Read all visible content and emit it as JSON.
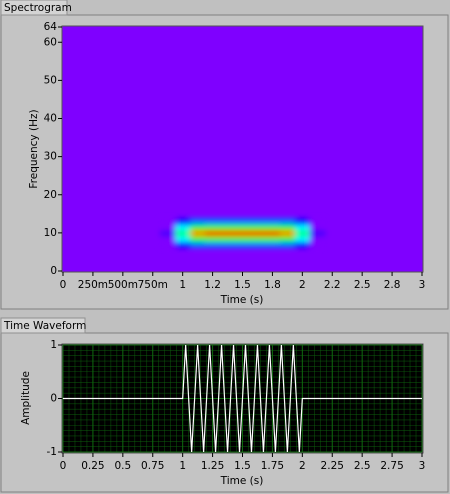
{
  "chart_data": [
    {
      "type": "heatmap",
      "title": "Spectrogram",
      "x_label": "Time (s)",
      "y_label": "Frequency (Hz)",
      "x": [
        0.875,
        1.0,
        1.125,
        1.25,
        1.375,
        1.5,
        1.625,
        1.75,
        1.875,
        2.0,
        2.125
      ],
      "y": [
        7,
        8.5,
        10,
        11.5,
        13
      ],
      "z": [
        [
          0,
          0.2,
          0.3,
          0.3,
          0.3,
          0.3,
          0.3,
          0.3,
          0.3,
          0.2,
          0
        ],
        [
          0,
          0.4,
          0.6,
          0.65,
          0.65,
          0.65,
          0.65,
          0.65,
          0.6,
          0.4,
          0
        ],
        [
          0.1,
          0.5,
          0.9,
          1,
          1,
          1,
          1,
          1,
          0.9,
          0.5,
          0.1
        ],
        [
          0,
          0.4,
          0.6,
          0.65,
          0.65,
          0.65,
          0.65,
          0.65,
          0.6,
          0.4,
          0
        ],
        [
          0,
          0.2,
          0.3,
          0.3,
          0.3,
          0.3,
          0.3,
          0.3,
          0.3,
          0.2,
          0
        ]
      ],
      "colormap": [
        "#7f00ff",
        "#0000ff",
        "#00ffff",
        "#00ff00",
        "#ffff00",
        "#ff0000"
      ],
      "xlim": [
        0,
        3
      ],
      "xticks": [
        0,
        {
          "value": 0.25,
          "label": "250m"
        },
        {
          "value": 0.5,
          "label": "500m"
        },
        {
          "value": 0.75,
          "label": "750m"
        },
        1,
        {
          "value": 1.25,
          "label": "1.2"
        },
        1.5,
        {
          "value": 1.75,
          "label": "1.8"
        },
        2,
        {
          "value": 2.25,
          "label": "2.2"
        },
        2.5,
        {
          "value": 2.75,
          "label": "2.8"
        },
        3
      ],
      "ylim": [
        0,
        64
      ],
      "yticks": [
        0,
        10,
        20,
        30,
        40,
        50,
        60,
        64
      ],
      "grid": false
    },
    {
      "type": "line",
      "title": "Time Waveform",
      "x_label": "Time (s)",
      "y_label": "Amplitude",
      "x": [
        0,
        1,
        1.025,
        1.05,
        1.075,
        1.1,
        1.125,
        1.15,
        1.175,
        1.2,
        1.225,
        1.25,
        1.275,
        1.3,
        1.325,
        1.35,
        1.375,
        1.4,
        1.425,
        1.45,
        1.475,
        1.5,
        1.525,
        1.55,
        1.575,
        1.6,
        1.625,
        1.65,
        1.675,
        1.7,
        1.725,
        1.75,
        1.775,
        1.8,
        1.825,
        1.85,
        1.875,
        1.9,
        1.925,
        1.95,
        1.975,
        2,
        3
      ],
      "series": [
        {
          "color": "#ffffff",
          "values": [
            0,
            0,
            1,
            0,
            -1,
            0,
            1,
            0,
            -1,
            0,
            1,
            0,
            -1,
            0,
            1,
            0,
            -1,
            0,
            1,
            0,
            -1,
            0,
            1,
            0,
            -1,
            0,
            1,
            0,
            -1,
            0,
            1,
            0,
            -1,
            0,
            1,
            0,
            -1,
            0,
            1,
            0,
            -1,
            0,
            0
          ]
        }
      ],
      "xlim": [
        0,
        3
      ],
      "xticks": [
        0,
        0.25,
        0.5,
        0.75,
        1,
        1.25,
        1.5,
        1.75,
        2,
        2.25,
        2.5,
        2.75,
        3
      ],
      "ylim": [
        -1,
        1
      ],
      "yticks": [
        -1,
        0,
        1
      ],
      "grid": true,
      "grid_color": "#0f6a0f"
    }
  ]
}
